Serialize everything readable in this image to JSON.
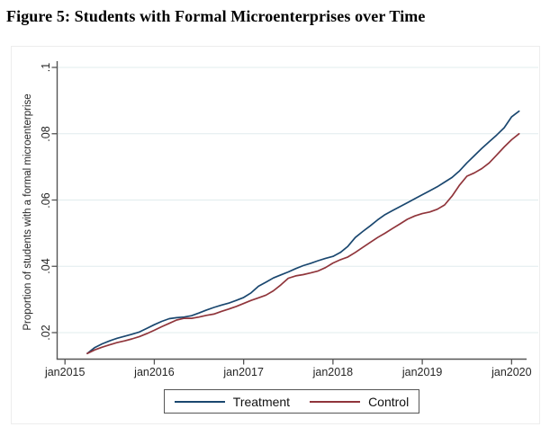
{
  "figure": {
    "title": "Figure 5: Students with Formal Microenterprises over Time"
  },
  "chart_data": {
    "type": "line",
    "title": "Figure 5: Students with Formal Microenterprises over Time",
    "xlabel": "",
    "ylabel": "Proportion of students with a formal microenterprise",
    "grid": true,
    "grid_color": "#e0eced",
    "axis_color": "#555555",
    "legend_position": "bottom-center",
    "x_tick_labels": [
      "jan2015",
      "jan2016",
      "jan2017",
      "jan2018",
      "jan2019",
      "jan2020"
    ],
    "x_tick_values": [
      2015,
      2016,
      2017,
      2018,
      2019,
      2020
    ],
    "y_tick_labels": [
      ".1",
      ".08",
      ".06",
      ".04",
      ".02"
    ],
    "y_tick_values": [
      0.1,
      0.08,
      0.06,
      0.04,
      0.02
    ],
    "ylim": [
      0.012,
      0.1
    ],
    "xlim_years": [
      2014.9,
      2020.3
    ],
    "x": [
      "2015-04",
      "2015-05",
      "2015-06",
      "2015-07",
      "2015-08",
      "2015-09",
      "2015-10",
      "2015-11",
      "2015-12",
      "2016-01",
      "2016-02",
      "2016-03",
      "2016-04",
      "2016-05",
      "2016-06",
      "2016-07",
      "2016-08",
      "2016-09",
      "2016-10",
      "2016-11",
      "2016-12",
      "2017-01",
      "2017-02",
      "2017-03",
      "2017-04",
      "2017-05",
      "2017-06",
      "2017-07",
      "2017-08",
      "2017-09",
      "2017-10",
      "2017-11",
      "2017-12",
      "2018-01",
      "2018-02",
      "2018-03",
      "2018-04",
      "2018-05",
      "2018-06",
      "2018-07",
      "2018-08",
      "2018-09",
      "2018-10",
      "2018-11",
      "2018-12",
      "2019-01",
      "2019-02",
      "2019-03",
      "2019-04",
      "2019-05",
      "2019-06",
      "2019-07",
      "2019-08",
      "2019-09",
      "2019-10",
      "2019-11",
      "2019-12",
      "2020-01",
      "2020-02"
    ],
    "series": [
      {
        "name": "Treatment",
        "color": "#1a476f",
        "values": [
          0.0137,
          0.0155,
          0.0166,
          0.0175,
          0.0183,
          0.0189,
          0.0195,
          0.0202,
          0.0213,
          0.0224,
          0.0234,
          0.0242,
          0.0245,
          0.0247,
          0.0251,
          0.0259,
          0.0268,
          0.0276,
          0.0283,
          0.0289,
          0.0297,
          0.0306,
          0.032,
          0.034,
          0.0352,
          0.0365,
          0.0374,
          0.0383,
          0.0393,
          0.0402,
          0.0409,
          0.0417,
          0.0424,
          0.043,
          0.0442,
          0.046,
          0.0487,
          0.0505,
          0.0522,
          0.054,
          0.0556,
          0.0568,
          0.058,
          0.0592,
          0.0604,
          0.0616,
          0.0628,
          0.064,
          0.0654,
          0.0668,
          0.0688,
          0.0712,
          0.0734,
          0.0756,
          0.0776,
          0.0796,
          0.0818,
          0.0851,
          0.0868
        ]
      },
      {
        "name": "Control",
        "color": "#90353b",
        "values": [
          0.0137,
          0.0148,
          0.0156,
          0.0163,
          0.017,
          0.0175,
          0.0181,
          0.0188,
          0.0197,
          0.0207,
          0.0218,
          0.0228,
          0.0238,
          0.0243,
          0.0243,
          0.0247,
          0.0252,
          0.0256,
          0.0264,
          0.0271,
          0.0279,
          0.0288,
          0.0297,
          0.0305,
          0.0313,
          0.0326,
          0.0344,
          0.0364,
          0.0371,
          0.0375,
          0.038,
          0.0386,
          0.0396,
          0.041,
          0.042,
          0.0428,
          0.0442,
          0.0457,
          0.0472,
          0.0487,
          0.05,
          0.0514,
          0.0528,
          0.0542,
          0.0552,
          0.0559,
          0.0564,
          0.0572,
          0.0585,
          0.0612,
          0.0645,
          0.0672,
          0.0682,
          0.0695,
          0.0712,
          0.0736,
          0.076,
          0.0782,
          0.08
        ]
      }
    ]
  }
}
